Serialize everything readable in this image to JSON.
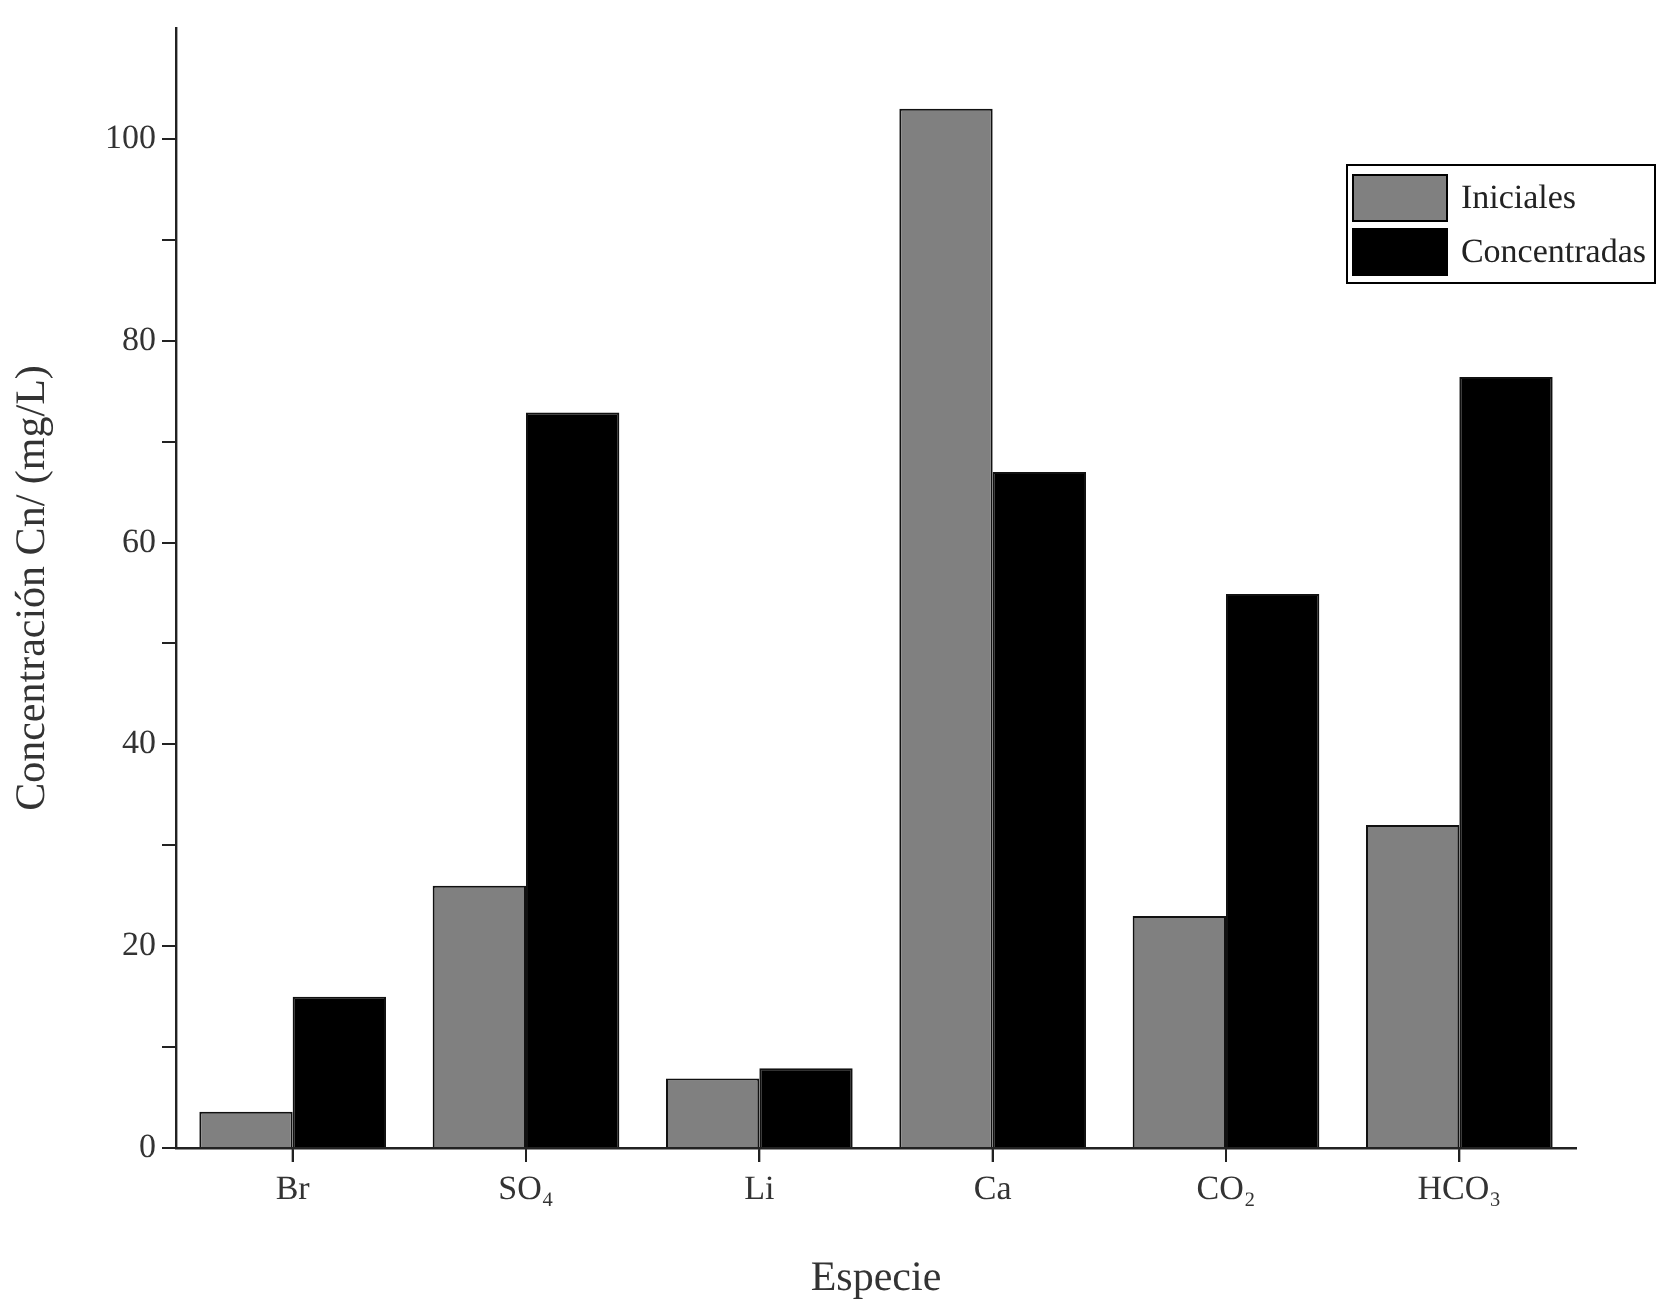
{
  "chart_data": {
    "type": "bar",
    "xlabel": "Especie",
    "ylabel": "Concentración Cn/ (mg/L)",
    "categories": [
      "Br",
      "SO₄",
      "Li",
      "Ca",
      "CO₂",
      "HCO₃"
    ],
    "series": [
      {
        "name": "Iniciales",
        "color": "#808080",
        "values": [
          3.6,
          26,
          6.9,
          103,
          23,
          32
        ]
      },
      {
        "name": "Concentradas",
        "color": "#000000",
        "values": [
          15,
          72.9,
          7.9,
          67,
          54.9,
          76.4
        ]
      }
    ],
    "ylim": [
      0,
      111
    ],
    "yticks": [
      0,
      {
        "value": 10,
        "label": null
      },
      20,
      {
        "value": 30,
        "label": null
      },
      40,
      {
        "value": 50,
        "label": null
      },
      60,
      {
        "value": 70,
        "label": null
      },
      80,
      {
        "value": 90,
        "label": null
      },
      100
    ],
    "grid": false,
    "legend": "top right"
  }
}
